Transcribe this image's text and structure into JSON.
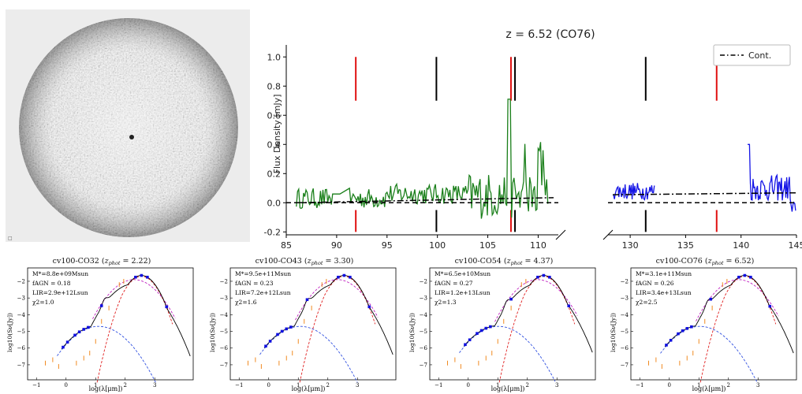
{
  "chart_data": [
    {
      "type": "line",
      "title": "z = 6.52 (CO76)",
      "ylabel": "Flux Density [mJy]",
      "ylim": [
        -0.22,
        1.05
      ],
      "axis_break": true,
      "segments": [
        {
          "xlim": [
            85,
            112
          ],
          "ticks": [
            85,
            90,
            95,
            100,
            105,
            110
          ]
        },
        {
          "xlim": [
            128,
            145
          ],
          "ticks": [
            130,
            135,
            140,
            145
          ]
        }
      ],
      "yticks": [
        -0.2,
        0.0,
        0.2,
        0.4,
        0.6,
        0.8,
        1.0
      ],
      "legend": {
        "position": "top-right",
        "entries": [
          {
            "label": "Cont.",
            "style": "dash-dot",
            "color": "#000000"
          }
        ]
      },
      "red_lines": [
        91.9,
        107.3,
        137.8
      ],
      "black_lines": [
        99.9,
        107.7,
        131.4
      ],
      "zero_line": {
        "y": 0.0,
        "style": "dashed",
        "color": "#000000"
      },
      "continuum": {
        "style": "dash-dot",
        "color": "#000000",
        "points": [
          [
            86,
            0.0
          ],
          [
            112,
            0.035
          ],
          [
            128,
            0.055
          ],
          [
            145,
            0.068
          ]
        ]
      },
      "series": [
        {
          "color": "#1a7f1a",
          "x_range": [
            86.0,
            111.0
          ]
        },
        {
          "color": "#1414e6",
          "x_range": [
            128.5,
            145.0
          ],
          "gap": [
            132.2,
            140.6
          ]
        }
      ]
    },
    {
      "type": "line",
      "title": "cv100-CO32 (z_phot = 2.22)",
      "title_name": "cv100-CO32",
      "zphot": "2.22",
      "xlabel": "log(λ[μm])",
      "ylabel": "log10(Sν[Jy])",
      "params": [
        "M*=8.8e+09Msun",
        "fAGN = 0.18",
        "LIR=2.9e+12Lsun",
        "χ2=1.0"
      ]
    },
    {
      "type": "line",
      "title": "cv100-CO43 (z_phot = 3.30)",
      "title_name": "cv100-CO43",
      "zphot": "3.30",
      "xlabel": "log(λ[μm])",
      "ylabel": "log10(Sν[Jy])",
      "params": [
        "M*=9.5e+11Msun",
        "fAGN = 0.23",
        "LIR=7.2e+12Lsun",
        "χ2=1.6"
      ]
    },
    {
      "type": "line",
      "title": "cv100-CO54 (z_phot = 4.37)",
      "title_name": "cv100-CO54",
      "zphot": "4.37",
      "xlabel": "log(λ[μm])",
      "ylabel": "log10(Sν[Jy])",
      "params": [
        "M*=6.5e+10Msun",
        "fAGN = 0.27",
        "LIR=1.2e+13Lsun",
        "χ2=1.3"
      ]
    },
    {
      "type": "line",
      "title": "cv100-CO76 (z_phot = 6.52)",
      "title_name": "cv100-CO76",
      "zphot": "6.52",
      "xlabel": "log(λ[μm])",
      "ylabel": "log10(Sν[Jy])",
      "params": [
        "M*=3.1e+11Msun",
        "fAGN = 0.26",
        "LIR=3.4e+13Lsun",
        "χ2=2.5"
      ]
    }
  ],
  "sed_axes": {
    "xlim": [
      -1.3,
      4.3
    ],
    "ylim": [
      -7.9,
      -1.2
    ],
    "xticks": [
      -1,
      0,
      1,
      2,
      3
    ],
    "yticks": [
      -2,
      -3,
      -4,
      -5,
      -6,
      -7
    ]
  },
  "colors": {
    "model": "#000000",
    "stellar": "#3050e0",
    "dust": "#e02020",
    "agn": "#c020c0",
    "upper_limits": "#f08a20",
    "photometry": "#1010e0"
  },
  "image_panel": {
    "label": "□"
  }
}
